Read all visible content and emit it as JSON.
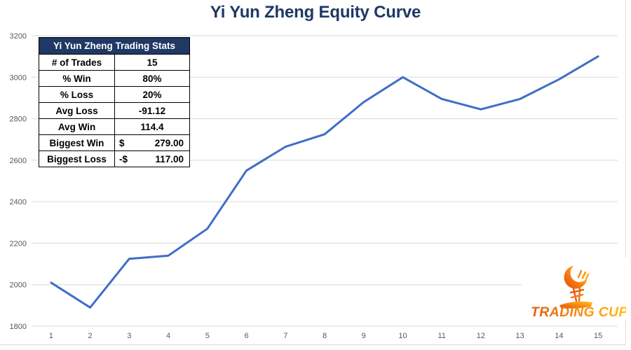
{
  "title": "Yi Yun Zheng Equity Curve",
  "stats_table": {
    "header": "Yi Yun Zheng Trading Stats",
    "rows": [
      {
        "label": "# of Trades",
        "value": "15"
      },
      {
        "label": "% Win",
        "value": "80%"
      },
      {
        "label": "% Loss",
        "value": "20%"
      },
      {
        "label": "Avg Loss",
        "value": "-91.12"
      },
      {
        "label": "Avg Win",
        "value": "114.4"
      },
      {
        "label": "Biggest Win",
        "currency": "$",
        "value": "279.00"
      },
      {
        "label": "Biggest Loss",
        "currency": "-$",
        "value": "117.00"
      }
    ]
  },
  "chart_data": {
    "type": "line",
    "title": "Yi Yun Zheng Equity Curve",
    "x": [
      1,
      2,
      3,
      4,
      5,
      6,
      7,
      8,
      9,
      10,
      11,
      12,
      13,
      14,
      15
    ],
    "values": [
      2010,
      1890,
      2125,
      2140,
      2270,
      2550,
      2665,
      2725,
      2880,
      3000,
      2895,
      2845,
      2895,
      2990,
      3100
    ],
    "xlabel": "",
    "ylabel": "",
    "ylim": [
      1800,
      3200
    ],
    "yticks": [
      3200,
      3000,
      2800,
      2600,
      2400,
      2200,
      2000,
      1800
    ],
    "grid": true,
    "legend": "none",
    "line_color": "#3f6ec6"
  },
  "logo": {
    "text": "TRADING CUP",
    "icon": "trading-cup-trophy-icon",
    "colors": {
      "start": "#e2470a",
      "mid": "#f98f15",
      "end": "#ffc41c"
    }
  },
  "colors": {
    "title": "#1f3864",
    "table_header_bg": "#1f3864",
    "axis_label": "#595959",
    "gridline": "#d9d9d9"
  }
}
